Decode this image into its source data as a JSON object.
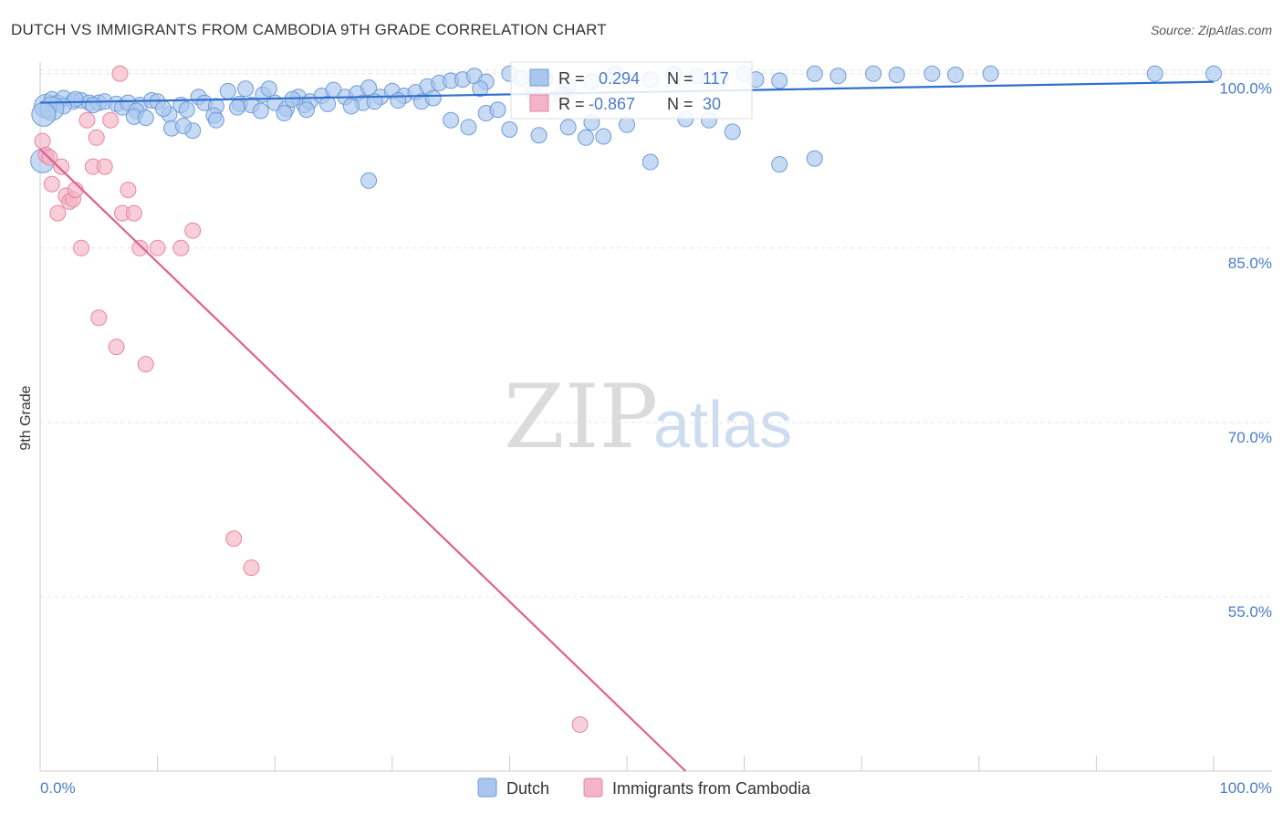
{
  "chart_data": {
    "type": "scatter",
    "title": "DUTCH VS IMMIGRANTS FROM CAMBODIA 9TH GRADE CORRELATION CHART",
    "source": "Source: ZipAtlas.com",
    "ylabel": "9th Grade",
    "xlim": [
      0,
      100
    ],
    "ylim": [
      40,
      101
    ],
    "x_tick_labels": [
      "0.0%",
      "100.0%"
    ],
    "y_ticks": [
      {
        "value": 100,
        "label": "100.0%"
      },
      {
        "value": 85,
        "label": "85.0%"
      },
      {
        "value": 70,
        "label": "70.0%"
      },
      {
        "value": 55,
        "label": "55.0%"
      }
    ],
    "watermark": {
      "zip": "ZIP",
      "atlas": "atlas"
    },
    "series": [
      {
        "name": "Dutch",
        "color": "#a9c6ee",
        "stroke": "#6f9bd8",
        "line_color": "#2f6fcc",
        "R": "0.294",
        "N": "117",
        "trend": [
          [
            0,
            97.5
          ],
          [
            100,
            99.3
          ]
        ],
        "points": [
          [
            0.5,
            97.2
          ],
          [
            1,
            97.8
          ],
          [
            1.5,
            97.5
          ],
          [
            2,
            97.9
          ],
          [
            2.8,
            97.6
          ],
          [
            3.5,
            97.7
          ],
          [
            4.2,
            97.5
          ],
          [
            5,
            97.5
          ],
          [
            5.5,
            97.6
          ],
          [
            6.5,
            97.4
          ],
          [
            7,
            97.1
          ],
          [
            7.5,
            97.5
          ],
          [
            8.5,
            97.3
          ],
          [
            9.5,
            97.7
          ],
          [
            10,
            97.6
          ],
          [
            11,
            96.5
          ],
          [
            12,
            97.3
          ],
          [
            13.5,
            98.0
          ],
          [
            14,
            97.5
          ],
          [
            15,
            97.2
          ],
          [
            16,
            98.5
          ],
          [
            17,
            97.4
          ],
          [
            17.5,
            98.7
          ],
          [
            18,
            97.3
          ],
          [
            19,
            98.2
          ],
          [
            20,
            97.5
          ],
          [
            21,
            97.0
          ],
          [
            22,
            98.0
          ],
          [
            22.5,
            97.3
          ],
          [
            23,
            97.6
          ],
          [
            24,
            98.1
          ],
          [
            25,
            98.6
          ],
          [
            26,
            98.0
          ],
          [
            27,
            98.3
          ],
          [
            27.5,
            97.5
          ],
          [
            28,
            98.8
          ],
          [
            29,
            98.0
          ],
          [
            30,
            98.5
          ],
          [
            31,
            98.1
          ],
          [
            32,
            98.4
          ],
          [
            33,
            98.9
          ],
          [
            34,
            99.2
          ],
          [
            35,
            99.4
          ],
          [
            36,
            99.5
          ],
          [
            37,
            99.8
          ],
          [
            38,
            99.3
          ],
          [
            40,
            100
          ],
          [
            41,
            99.6
          ],
          [
            42,
            98.3
          ],
          [
            43,
            99.5
          ],
          [
            45,
            99.0
          ],
          [
            47,
            99.3
          ],
          [
            49,
            100
          ],
          [
            52,
            99.5
          ],
          [
            54,
            100
          ],
          [
            56,
            99.8
          ],
          [
            60,
            100
          ],
          [
            63,
            99.4
          ],
          [
            66,
            100
          ],
          [
            71,
            100
          ],
          [
            76,
            100
          ],
          [
            81,
            100
          ],
          [
            95,
            100
          ],
          [
            100,
            100
          ],
          [
            4.5,
            97.3
          ],
          [
            8.2,
            96.8
          ],
          [
            10.5,
            97.0
          ],
          [
            12.5,
            96.9
          ],
          [
            14.8,
            96.4
          ],
          [
            16.8,
            97.1
          ],
          [
            18.8,
            96.8
          ],
          [
            20.8,
            96.6
          ],
          [
            22.7,
            96.9
          ],
          [
            24.5,
            97.4
          ],
          [
            26.5,
            97.2
          ],
          [
            28.5,
            97.6
          ],
          [
            30.5,
            97.7
          ],
          [
            32.5,
            97.6
          ],
          [
            35,
            96.0
          ],
          [
            36.5,
            95.4
          ],
          [
            38,
            96.6
          ],
          [
            39,
            96.9
          ],
          [
            40,
            95.2
          ],
          [
            42.5,
            94.7
          ],
          [
            45,
            95.4
          ],
          [
            47,
            95.8
          ],
          [
            46.5,
            94.5
          ],
          [
            48,
            94.6
          ],
          [
            50,
            95.6
          ],
          [
            52,
            92.4
          ],
          [
            55,
            96.1
          ],
          [
            57,
            96.0
          ],
          [
            59,
            95.0
          ],
          [
            63,
            92.2
          ],
          [
            66,
            92.7
          ],
          [
            8,
            96.3
          ],
          [
            9,
            96.2
          ],
          [
            11.2,
            95.3
          ],
          [
            13,
            95.1
          ],
          [
            15,
            96.0
          ],
          [
            3,
            97.8
          ],
          [
            2,
            97.2
          ],
          [
            1,
            97.0
          ],
          [
            0.3,
            96.5
          ],
          [
            0.2,
            92.5
          ],
          [
            28,
            90.8
          ],
          [
            21.5,
            97.8
          ],
          [
            19.5,
            98.7
          ],
          [
            44.5,
            98.2
          ],
          [
            58,
            99.7
          ],
          [
            61,
            99.5
          ],
          [
            68,
            99.8
          ],
          [
            73,
            99.9
          ],
          [
            78,
            99.9
          ],
          [
            33.5,
            97.9
          ],
          [
            37.5,
            98.7
          ],
          [
            12.2,
            95.5
          ]
        ]
      },
      {
        "name": "Immigrants from Cambodia",
        "color": "#f4b3c8",
        "stroke": "#e7869f",
        "line_color": "#e0608f",
        "R": "-0.867",
        "N": "30",
        "trend": [
          [
            0,
            93.5
          ],
          [
            55,
            40
          ]
        ],
        "points": [
          [
            0.2,
            94.2
          ],
          [
            0.5,
            93.0
          ],
          [
            1,
            90.5
          ],
          [
            1.5,
            88.0
          ],
          [
            1.8,
            92.0
          ],
          [
            2.2,
            89.5
          ],
          [
            2.5,
            89.0
          ],
          [
            2.8,
            89.2
          ],
          [
            3,
            90.0
          ],
          [
            3.5,
            85.0
          ],
          [
            4,
            96.0
          ],
          [
            4.5,
            92.0
          ],
          [
            4.8,
            94.5
          ],
          [
            5,
            79.0
          ],
          [
            5.5,
            92.0
          ],
          [
            6,
            96.0
          ],
          [
            6.5,
            76.5
          ],
          [
            6.8,
            100
          ],
          [
            7,
            88.0
          ],
          [
            7.5,
            90.0
          ],
          [
            8,
            88.0
          ],
          [
            8.5,
            85.0
          ],
          [
            9,
            75.0
          ],
          [
            10,
            85.0
          ],
          [
            12,
            85.0
          ],
          [
            13,
            86.5
          ],
          [
            16.5,
            60.0
          ],
          [
            18,
            57.5
          ],
          [
            46,
            44.0
          ],
          [
            0.8,
            92.8
          ]
        ]
      }
    ]
  }
}
